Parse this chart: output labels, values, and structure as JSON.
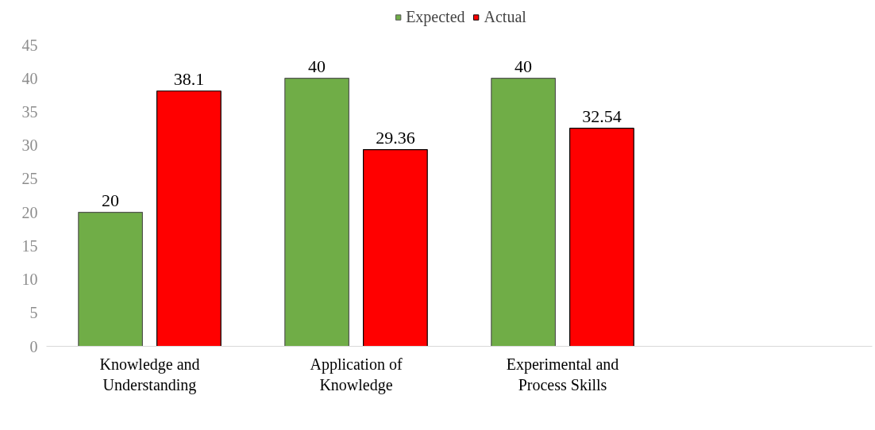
{
  "chart_data": {
    "type": "bar",
    "categories": [
      "Knowledge and Understanding",
      "Application of Knowledge",
      "Experimental and Process Skills",
      null
    ],
    "series": [
      {
        "name": "Expected",
        "color": "#70ad47",
        "values": [
          20,
          40,
          40,
          null
        ]
      },
      {
        "name": "Actual",
        "color": "#ff0000",
        "values": [
          38.1,
          29.36,
          32.54,
          null
        ]
      }
    ],
    "ylim": [
      0,
      45
    ],
    "yticks": [
      0,
      5,
      10,
      15,
      20,
      25,
      30,
      35,
      40,
      45
    ],
    "grid": false,
    "legend": "top",
    "data_labels": true
  }
}
